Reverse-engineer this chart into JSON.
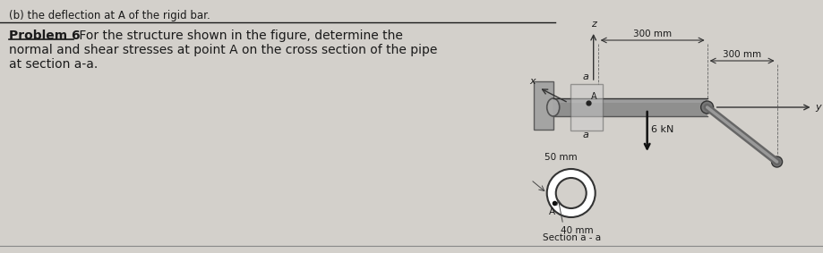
{
  "bg_color": "#d3d0cb",
  "panel_bg": "#e8e6e0",
  "title": "Problem 6",
  "text_line1": " For the structure shown in the figure, determine the",
  "text_line2": "normal and shear stresses at point A on the cross section of the pipe",
  "text_line3": "at section a-a.",
  "top_line": "(b) the deflection at A of the rigid bar.",
  "label_300mm_top": "300 mm",
  "label_300mm_mid": "300 mm",
  "label_50mm": "50 mm",
  "label_40mm": "40 mm",
  "label_6kN": "6 kN",
  "label_section": "Section a - a",
  "label_x": "x",
  "label_y": "y",
  "label_z": "z",
  "label_a": "a",
  "label_A": "A",
  "text_color": "#1a1a1a",
  "diagram_color": "#555555",
  "wall_color": "#999999",
  "pipe_color": "#888888",
  "pipe_highlight": "#aaaaaa",
  "plane_color": "#cccccc"
}
